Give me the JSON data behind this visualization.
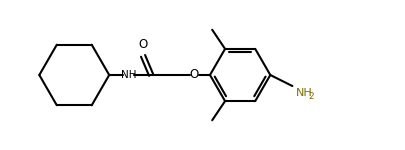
{
  "bg_color": "#ffffff",
  "line_color": "#000000",
  "nh2_color": "#7B6F00",
  "line_width": 1.5,
  "fig_width": 4.06,
  "fig_height": 1.5,
  "dpi": 100,
  "xlim": [
    -6.8,
    4.2
  ],
  "ylim": [
    -1.6,
    1.6
  ]
}
